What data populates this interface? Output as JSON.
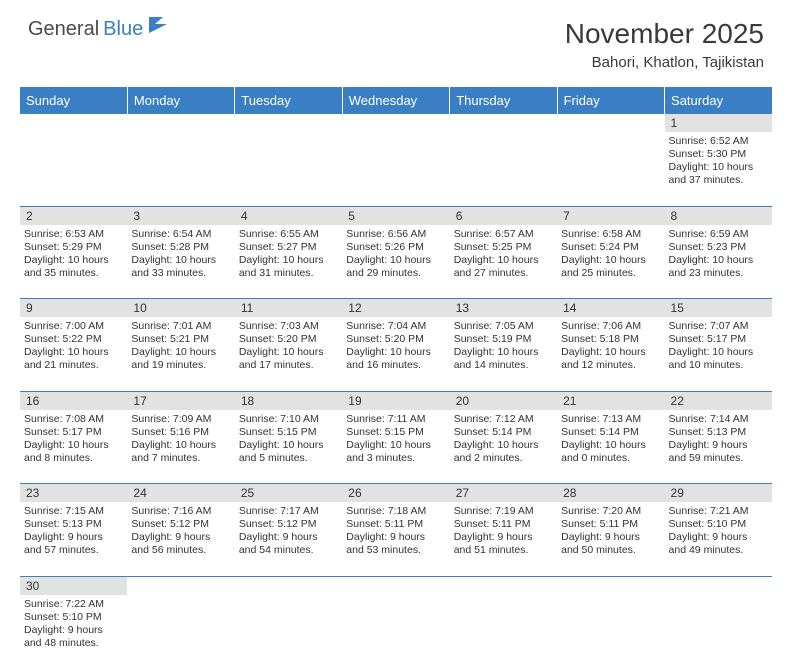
{
  "logo": {
    "dark": "General",
    "blue": "Blue"
  },
  "title": "November 2025",
  "location": "Bahori, Khatlon, Tajikistan",
  "colors": {
    "header_bg": "#3a7fc4",
    "header_text": "#ffffff",
    "daynum_bg": "#e2e2e2",
    "border": "#3a7fc4",
    "text": "#333333"
  },
  "day_headers": [
    "Sunday",
    "Monday",
    "Tuesday",
    "Wednesday",
    "Thursday",
    "Friday",
    "Saturday"
  ],
  "weeks": [
    [
      null,
      null,
      null,
      null,
      null,
      null,
      {
        "n": "1",
        "sunrise": "6:52 AM",
        "sunset": "5:30 PM",
        "dl1": "Daylight: 10 hours",
        "dl2": "and 37 minutes."
      }
    ],
    [
      {
        "n": "2",
        "sunrise": "6:53 AM",
        "sunset": "5:29 PM",
        "dl1": "Daylight: 10 hours",
        "dl2": "and 35 minutes."
      },
      {
        "n": "3",
        "sunrise": "6:54 AM",
        "sunset": "5:28 PM",
        "dl1": "Daylight: 10 hours",
        "dl2": "and 33 minutes."
      },
      {
        "n": "4",
        "sunrise": "6:55 AM",
        "sunset": "5:27 PM",
        "dl1": "Daylight: 10 hours",
        "dl2": "and 31 minutes."
      },
      {
        "n": "5",
        "sunrise": "6:56 AM",
        "sunset": "5:26 PM",
        "dl1": "Daylight: 10 hours",
        "dl2": "and 29 minutes."
      },
      {
        "n": "6",
        "sunrise": "6:57 AM",
        "sunset": "5:25 PM",
        "dl1": "Daylight: 10 hours",
        "dl2": "and 27 minutes."
      },
      {
        "n": "7",
        "sunrise": "6:58 AM",
        "sunset": "5:24 PM",
        "dl1": "Daylight: 10 hours",
        "dl2": "and 25 minutes."
      },
      {
        "n": "8",
        "sunrise": "6:59 AM",
        "sunset": "5:23 PM",
        "dl1": "Daylight: 10 hours",
        "dl2": "and 23 minutes."
      }
    ],
    [
      {
        "n": "9",
        "sunrise": "7:00 AM",
        "sunset": "5:22 PM",
        "dl1": "Daylight: 10 hours",
        "dl2": "and 21 minutes."
      },
      {
        "n": "10",
        "sunrise": "7:01 AM",
        "sunset": "5:21 PM",
        "dl1": "Daylight: 10 hours",
        "dl2": "and 19 minutes."
      },
      {
        "n": "11",
        "sunrise": "7:03 AM",
        "sunset": "5:20 PM",
        "dl1": "Daylight: 10 hours",
        "dl2": "and 17 minutes."
      },
      {
        "n": "12",
        "sunrise": "7:04 AM",
        "sunset": "5:20 PM",
        "dl1": "Daylight: 10 hours",
        "dl2": "and 16 minutes."
      },
      {
        "n": "13",
        "sunrise": "7:05 AM",
        "sunset": "5:19 PM",
        "dl1": "Daylight: 10 hours",
        "dl2": "and 14 minutes."
      },
      {
        "n": "14",
        "sunrise": "7:06 AM",
        "sunset": "5:18 PM",
        "dl1": "Daylight: 10 hours",
        "dl2": "and 12 minutes."
      },
      {
        "n": "15",
        "sunrise": "7:07 AM",
        "sunset": "5:17 PM",
        "dl1": "Daylight: 10 hours",
        "dl2": "and 10 minutes."
      }
    ],
    [
      {
        "n": "16",
        "sunrise": "7:08 AM",
        "sunset": "5:17 PM",
        "dl1": "Daylight: 10 hours",
        "dl2": "and 8 minutes."
      },
      {
        "n": "17",
        "sunrise": "7:09 AM",
        "sunset": "5:16 PM",
        "dl1": "Daylight: 10 hours",
        "dl2": "and 7 minutes."
      },
      {
        "n": "18",
        "sunrise": "7:10 AM",
        "sunset": "5:15 PM",
        "dl1": "Daylight: 10 hours",
        "dl2": "and 5 minutes."
      },
      {
        "n": "19",
        "sunrise": "7:11 AM",
        "sunset": "5:15 PM",
        "dl1": "Daylight: 10 hours",
        "dl2": "and 3 minutes."
      },
      {
        "n": "20",
        "sunrise": "7:12 AM",
        "sunset": "5:14 PM",
        "dl1": "Daylight: 10 hours",
        "dl2": "and 2 minutes."
      },
      {
        "n": "21",
        "sunrise": "7:13 AM",
        "sunset": "5:14 PM",
        "dl1": "Daylight: 10 hours",
        "dl2": "and 0 minutes."
      },
      {
        "n": "22",
        "sunrise": "7:14 AM",
        "sunset": "5:13 PM",
        "dl1": "Daylight: 9 hours",
        "dl2": "and 59 minutes."
      }
    ],
    [
      {
        "n": "23",
        "sunrise": "7:15 AM",
        "sunset": "5:13 PM",
        "dl1": "Daylight: 9 hours",
        "dl2": "and 57 minutes."
      },
      {
        "n": "24",
        "sunrise": "7:16 AM",
        "sunset": "5:12 PM",
        "dl1": "Daylight: 9 hours",
        "dl2": "and 56 minutes."
      },
      {
        "n": "25",
        "sunrise": "7:17 AM",
        "sunset": "5:12 PM",
        "dl1": "Daylight: 9 hours",
        "dl2": "and 54 minutes."
      },
      {
        "n": "26",
        "sunrise": "7:18 AM",
        "sunset": "5:11 PM",
        "dl1": "Daylight: 9 hours",
        "dl2": "and 53 minutes."
      },
      {
        "n": "27",
        "sunrise": "7:19 AM",
        "sunset": "5:11 PM",
        "dl1": "Daylight: 9 hours",
        "dl2": "and 51 minutes."
      },
      {
        "n": "28",
        "sunrise": "7:20 AM",
        "sunset": "5:11 PM",
        "dl1": "Daylight: 9 hours",
        "dl2": "and 50 minutes."
      },
      {
        "n": "29",
        "sunrise": "7:21 AM",
        "sunset": "5:10 PM",
        "dl1": "Daylight: 9 hours",
        "dl2": "and 49 minutes."
      }
    ],
    [
      {
        "n": "30",
        "sunrise": "7:22 AM",
        "sunset": "5:10 PM",
        "dl1": "Daylight: 9 hours",
        "dl2": "and 48 minutes."
      },
      null,
      null,
      null,
      null,
      null,
      null
    ]
  ]
}
